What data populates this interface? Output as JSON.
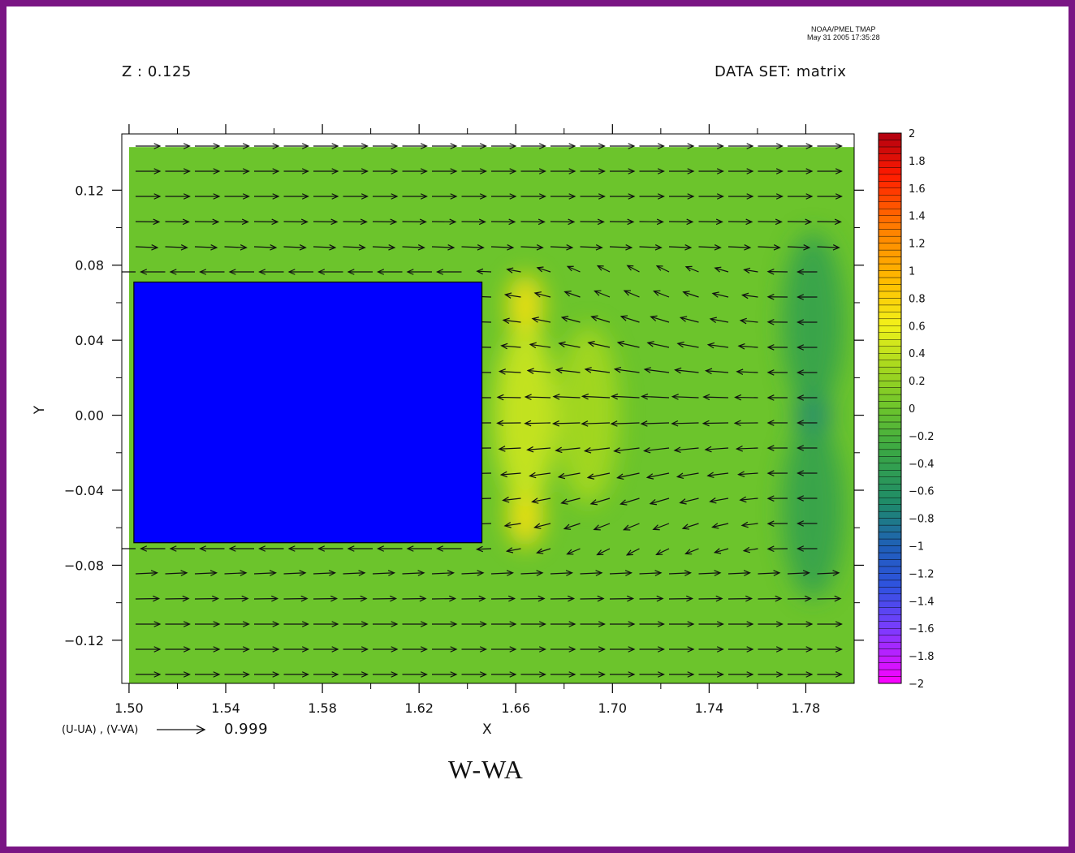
{
  "header": {
    "stamp_line1": "NOAA/PMEL TMAP",
    "stamp_line2": "May 31 2005 17:35:28",
    "z_label": "Z : 0.125",
    "dataset_label": "DATA SET: matrix"
  },
  "vector_key": {
    "label": "(U-UA) , (V-VA)",
    "value": "0.999"
  },
  "colors": {
    "frame": "#7a1584",
    "obstacle": "#0000ff",
    "field_base": "#6cc42c"
  },
  "chart_data": {
    "type": "heatmap",
    "title": "W-WA",
    "xlabel": "X",
    "ylabel": "Y",
    "xlim": [
      1.497,
      1.8
    ],
    "ylim": [
      -0.143,
      0.15
    ],
    "x_ticks": [
      {
        "v": 1.5,
        "label": "1.50"
      },
      {
        "v": 1.54,
        "label": "1.54"
      },
      {
        "v": 1.58,
        "label": "1.58"
      },
      {
        "v": 1.62,
        "label": "1.62"
      },
      {
        "v": 1.66,
        "label": "1.66"
      },
      {
        "v": 1.7,
        "label": "1.70"
      },
      {
        "v": 1.74,
        "label": "1.74"
      },
      {
        "v": 1.78,
        "label": "1.78"
      }
    ],
    "y_ticks": [
      {
        "v": 0.12,
        "label": "0.12"
      },
      {
        "v": 0.08,
        "label": "0.08"
      },
      {
        "v": 0.04,
        "label": "0.04"
      },
      {
        "v": 0.0,
        "label": "0.00"
      },
      {
        "v": -0.04,
        "label": "−0.04"
      },
      {
        "v": -0.08,
        "label": "−0.08"
      },
      {
        "v": -0.12,
        "label": "−0.12"
      }
    ],
    "data_extent": {
      "x": [
        1.5,
        1.8
      ],
      "y": [
        -0.143,
        0.143
      ]
    },
    "obstacle": {
      "x": [
        1.502,
        1.646
      ],
      "y": [
        -0.068,
        0.071
      ]
    },
    "features": [
      {
        "x": 1.664,
        "y": 0.058,
        "value": 0.7
      },
      {
        "x": 1.664,
        "y": -0.053,
        "value": 0.7
      },
      {
        "x": 1.664,
        "y": 0.0,
        "value": 0.45
      },
      {
        "x": 1.69,
        "y": 0.0,
        "value": 0.3
      },
      {
        "x": 1.783,
        "y": 0.0,
        "value": -0.75
      },
      {
        "x": 1.783,
        "y": 0.05,
        "value": -0.4
      },
      {
        "x": 1.783,
        "y": -0.05,
        "value": -0.4
      }
    ],
    "colorbar": {
      "min": -2,
      "max": 2,
      "labels": [
        {
          "v": 2,
          "label": "2"
        },
        {
          "v": 1.8,
          "label": "1.8"
        },
        {
          "v": 1.6,
          "label": "1.6"
        },
        {
          "v": 1.4,
          "label": "1.4"
        },
        {
          "v": 1.2,
          "label": "1.2"
        },
        {
          "v": 1,
          "label": "1"
        },
        {
          "v": 0.8,
          "label": "0.8"
        },
        {
          "v": 0.6,
          "label": "0.6"
        },
        {
          "v": 0.4,
          "label": "0.4"
        },
        {
          "v": 0.2,
          "label": "0.2"
        },
        {
          "v": 0,
          "label": "0"
        },
        {
          "v": -0.2,
          "label": "−0.2"
        },
        {
          "v": -0.4,
          "label": "−0.4"
        },
        {
          "v": -0.6,
          "label": "−0.6"
        },
        {
          "v": -0.8,
          "label": "−0.8"
        },
        {
          "v": -1,
          "label": "−1"
        },
        {
          "v": -1.2,
          "label": "−1.2"
        },
        {
          "v": -1.4,
          "label": "−1.4"
        },
        {
          "v": -1.6,
          "label": "−1.6"
        },
        {
          "v": -1.8,
          "label": "−1.8"
        },
        {
          "v": -2,
          "label": "−2"
        }
      ],
      "stops": [
        {
          "v": -2,
          "color": "#ff00ff"
        },
        {
          "v": -1.6,
          "color": "#7a3cff"
        },
        {
          "v": -1.3,
          "color": "#2f52e0"
        },
        {
          "v": -1.0,
          "color": "#1f5fb8"
        },
        {
          "v": -0.7,
          "color": "#1e8a6a"
        },
        {
          "v": -0.3,
          "color": "#3ba844"
        },
        {
          "v": 0,
          "color": "#6cc42c"
        },
        {
          "v": 0.3,
          "color": "#a6d81e"
        },
        {
          "v": 0.6,
          "color": "#f2f21a"
        },
        {
          "v": 0.9,
          "color": "#ffc000"
        },
        {
          "v": 1.3,
          "color": "#ff8000"
        },
        {
          "v": 1.7,
          "color": "#ff1a00"
        },
        {
          "v": 2,
          "color": "#b00010"
        }
      ]
    }
  }
}
